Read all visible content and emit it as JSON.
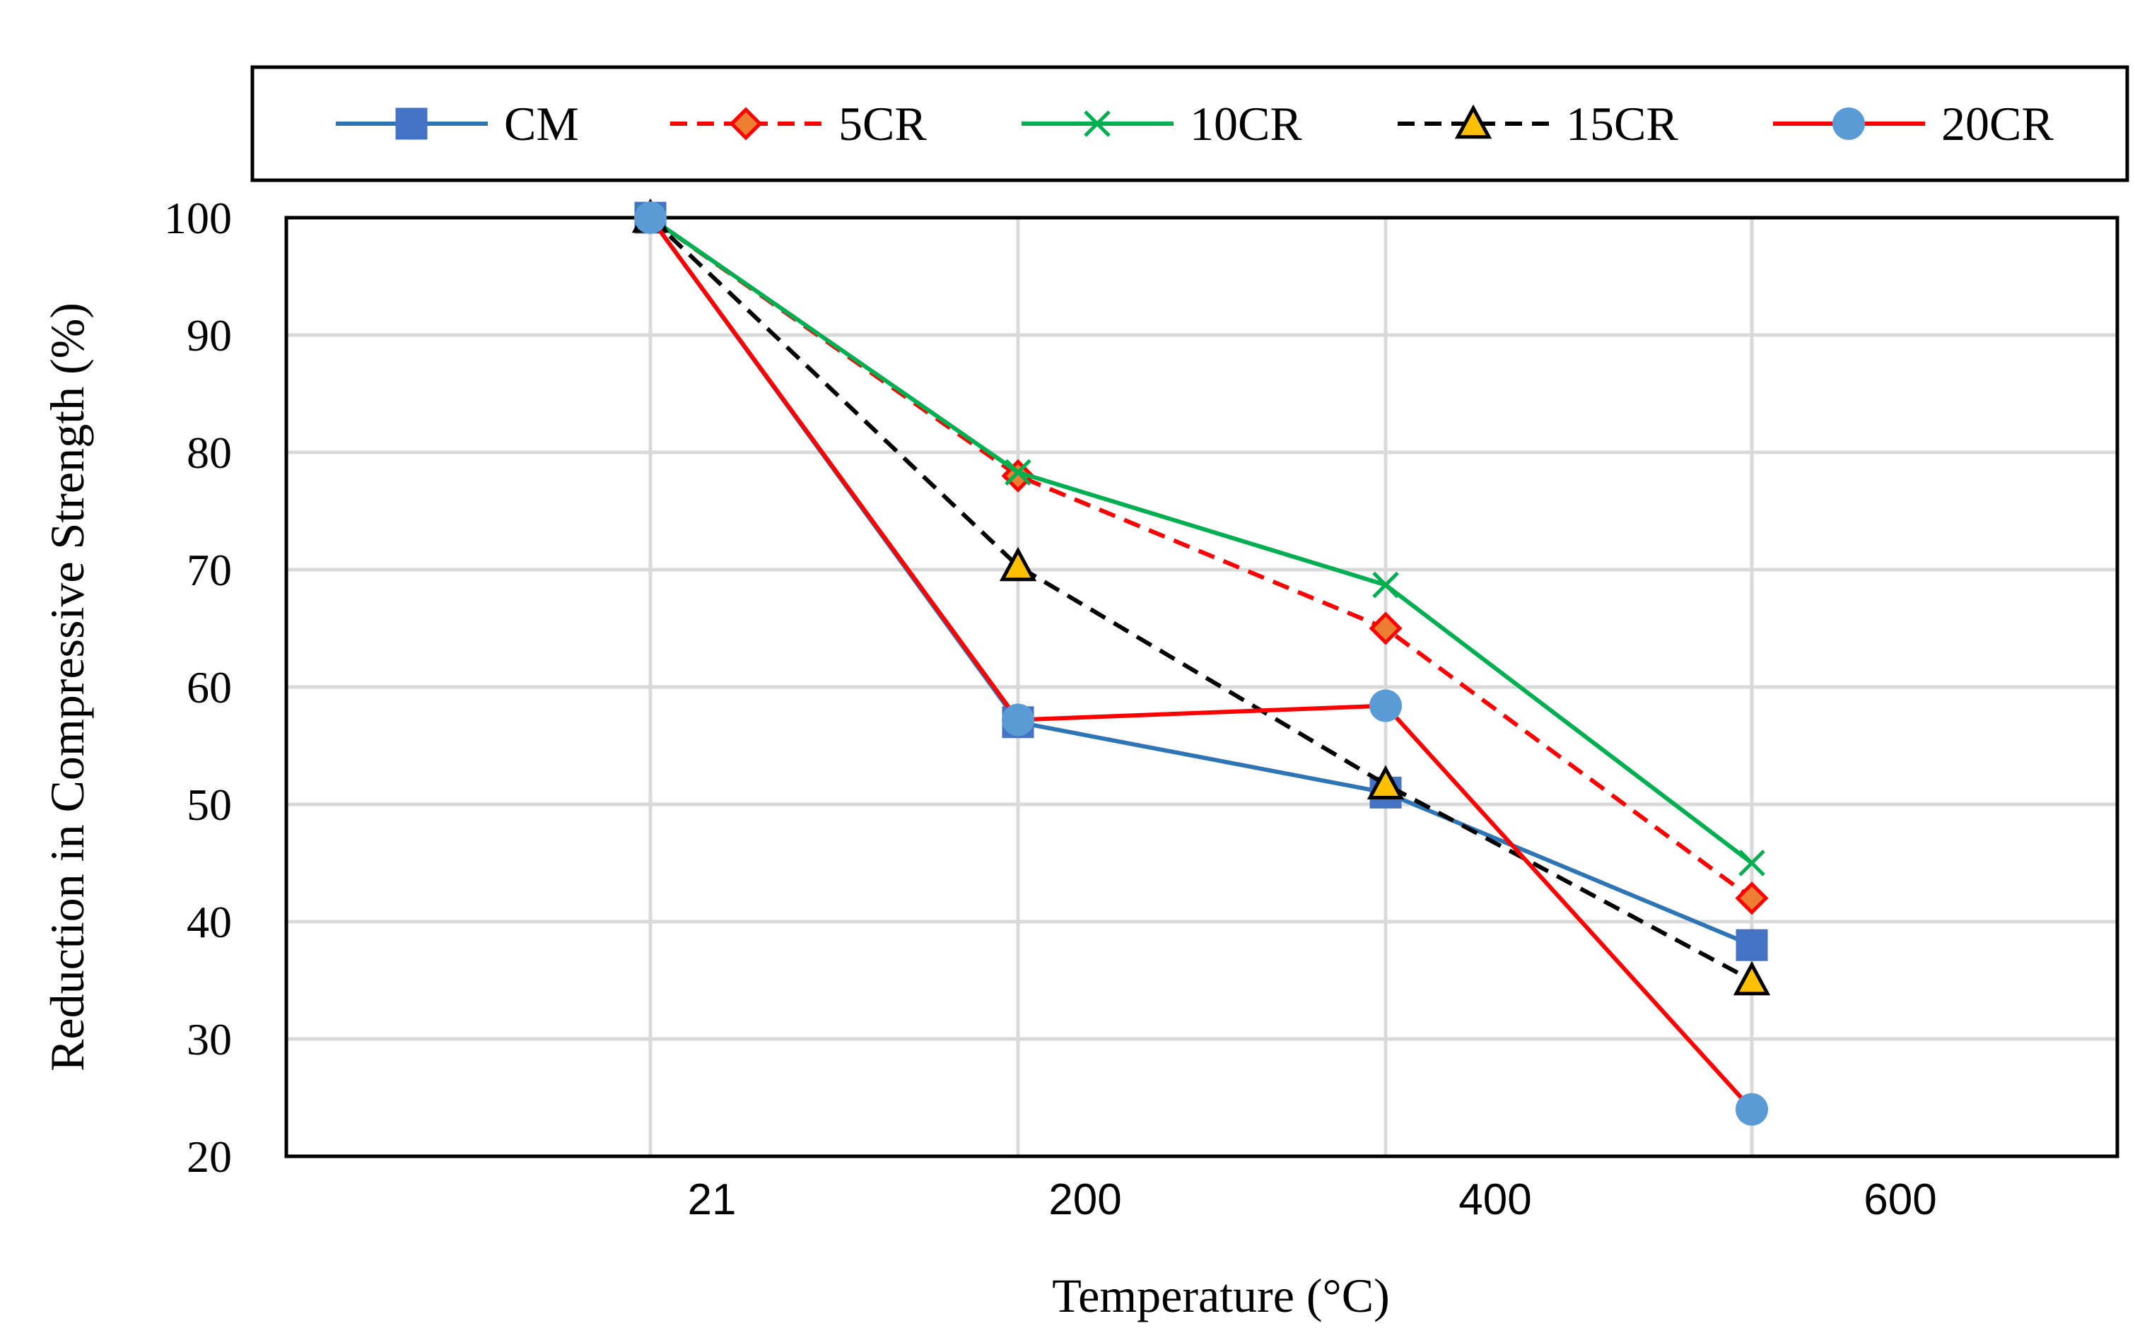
{
  "chart_data": {
    "type": "line",
    "title": "",
    "xlabel": "Temperature (°C)",
    "ylabel": "Reduction in Compressive Strength (%)",
    "categories": [
      "21",
      "200",
      "400",
      "600"
    ],
    "ylim": [
      20,
      100
    ],
    "yticks": [
      "100",
      "90",
      "80",
      "70",
      "60",
      "50",
      "40",
      "30",
      "20"
    ],
    "grid": true,
    "legend_position": "top",
    "series": [
      {
        "name": "CM",
        "values": [
          100,
          57,
          51,
          38
        ],
        "color": "#2E75B6",
        "marker_fill": "#4472C4",
        "dash": "solid",
        "marker": "square"
      },
      {
        "name": "5CR",
        "values": [
          100,
          78,
          65,
          42
        ],
        "color": "#FF0000",
        "marker_fill": "#ED7D31",
        "dash": "dashed",
        "marker": "diamond"
      },
      {
        "name": "10CR",
        "values": [
          100,
          78.3,
          68.7,
          45
        ],
        "color": "#00B050",
        "marker_fill": "#00B050",
        "dash": "solid",
        "marker": "x"
      },
      {
        "name": "15CR",
        "values": [
          100,
          70.3,
          51.7,
          35
        ],
        "color": "#000000",
        "marker_fill": "#FFC000",
        "dash": "dashed",
        "marker": "triangle"
      },
      {
        "name": "20CR",
        "values": [
          100,
          57.2,
          58.4,
          24
        ],
        "color": "#FF0000",
        "marker_fill": "#5B9BD5",
        "dash": "solid",
        "marker": "circle"
      }
    ]
  }
}
